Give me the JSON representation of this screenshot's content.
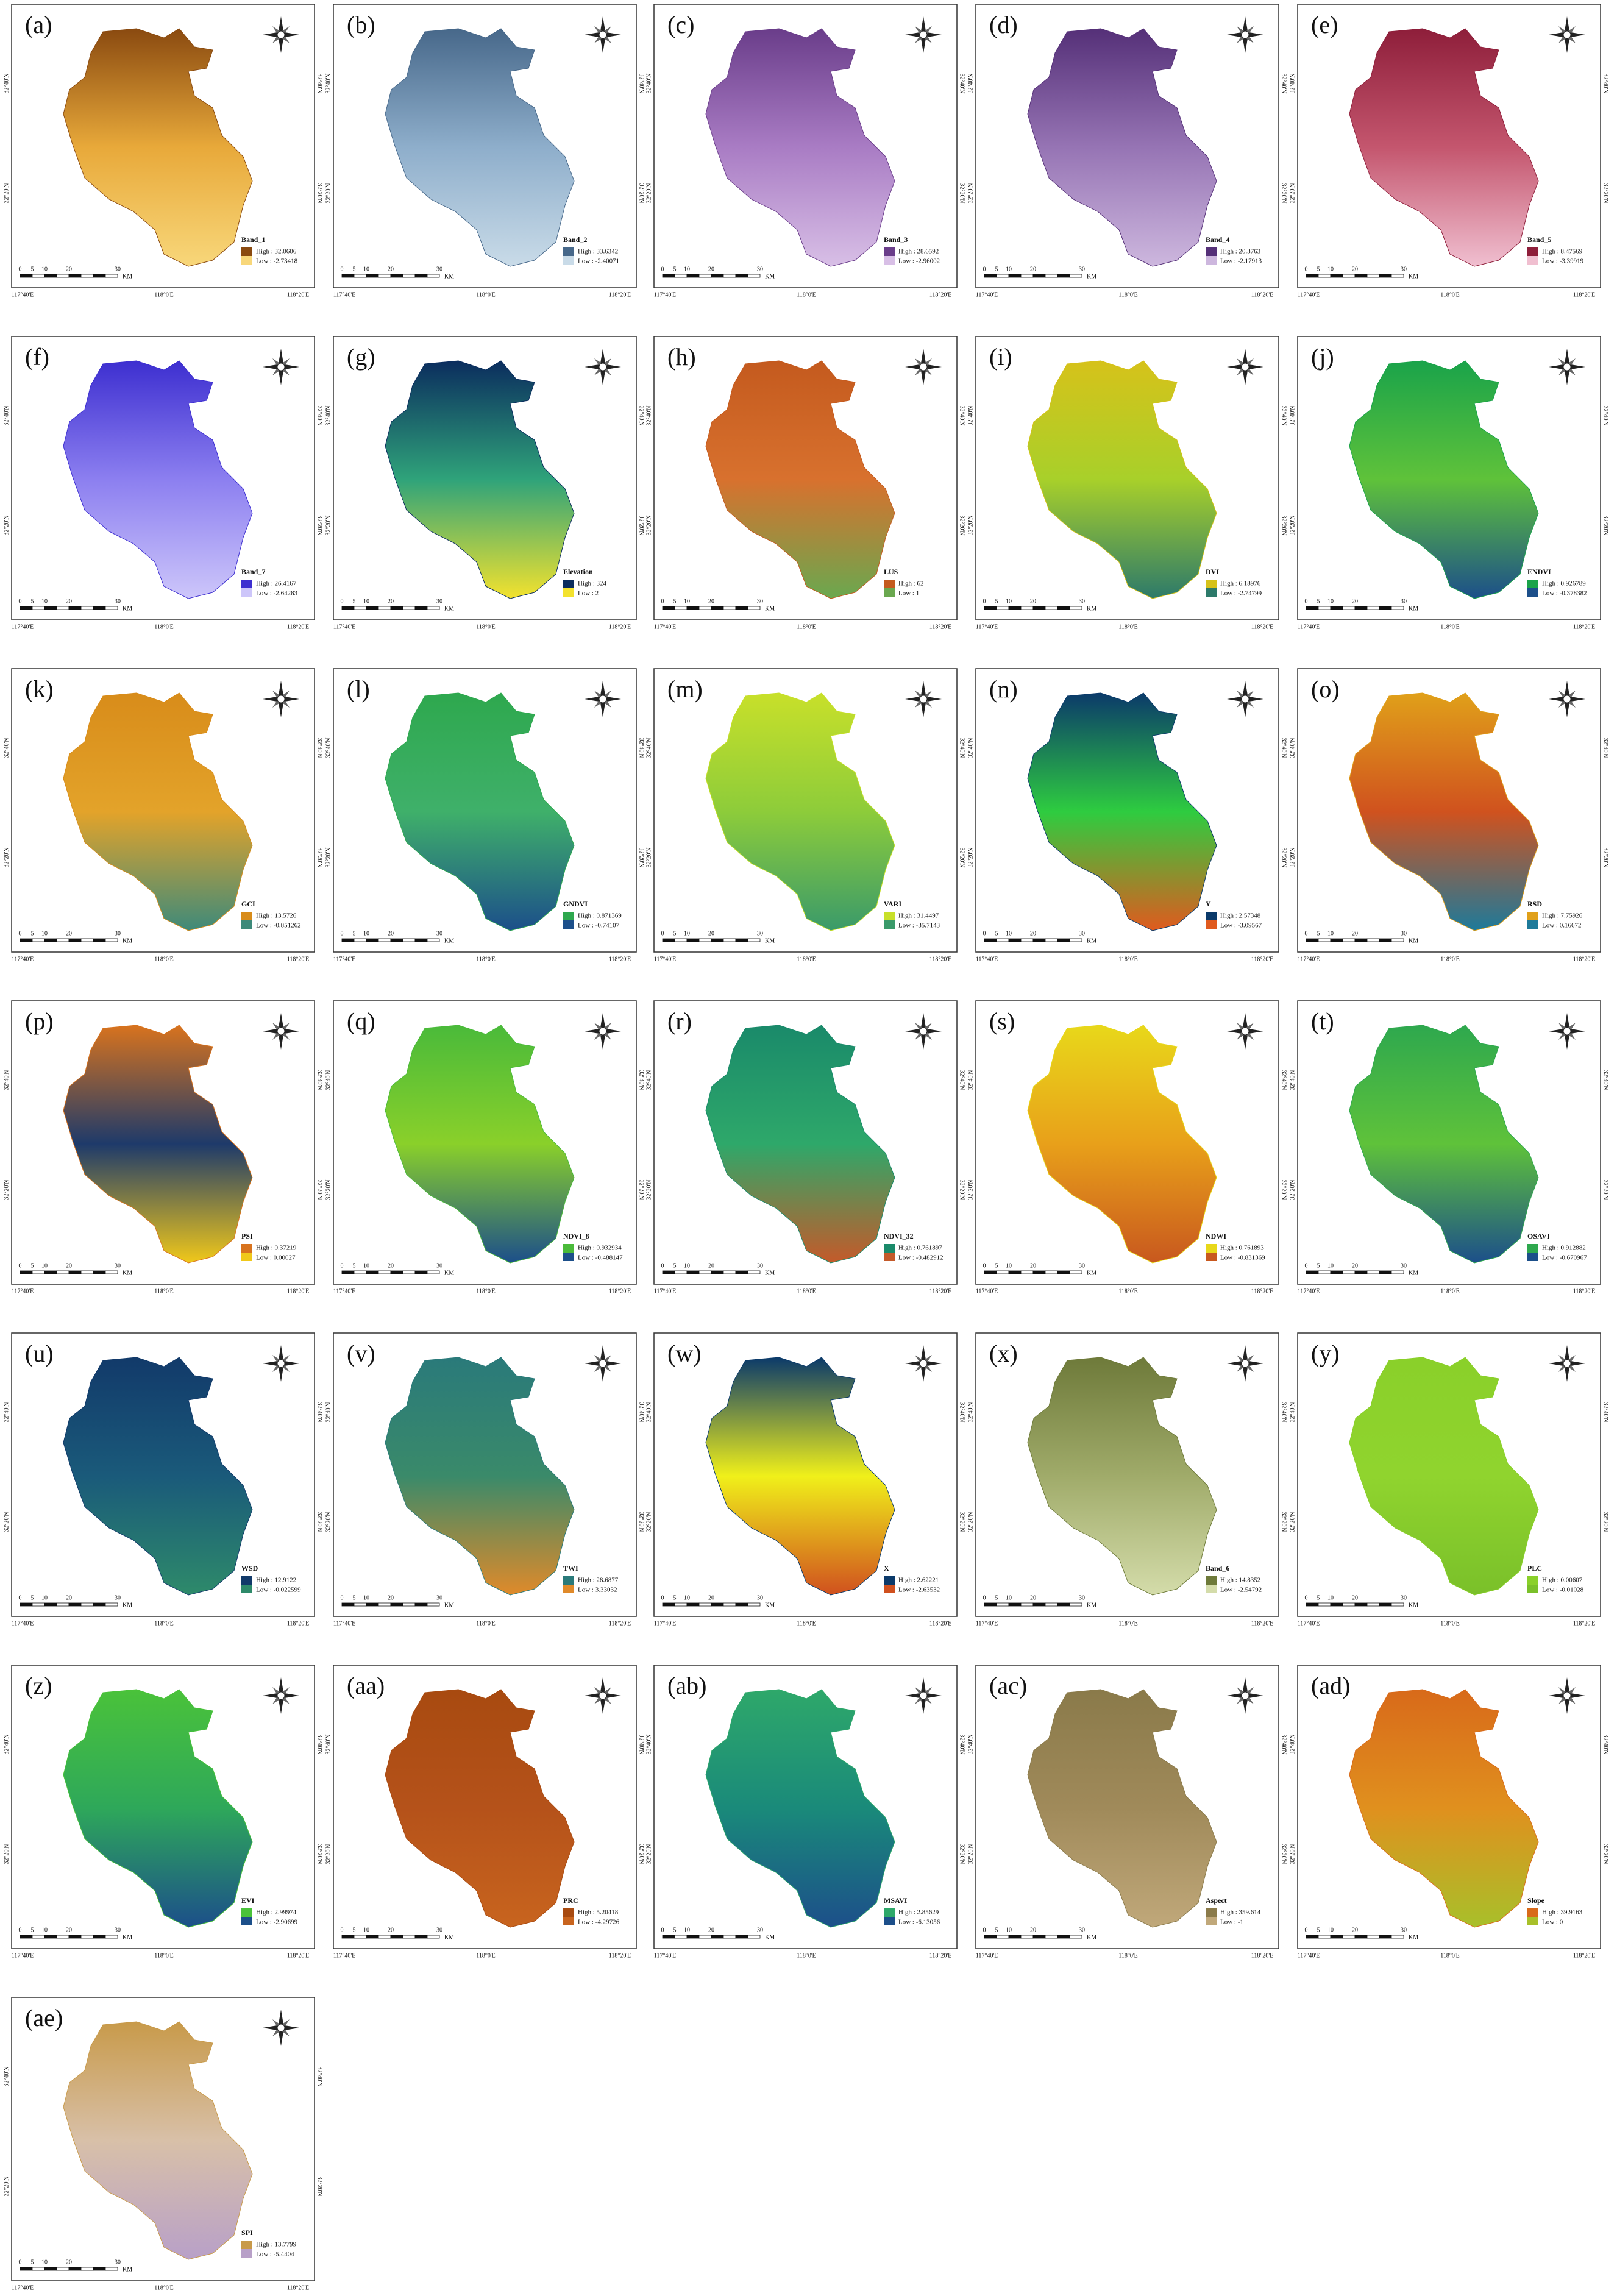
{
  "figure": {
    "scale_labels": [
      "0",
      "5",
      "10",
      "20",
      "30",
      "KM"
    ],
    "lon_labels": [
      "117°40'E",
      "118°0'E",
      "118°20'E"
    ],
    "lat_labels": [
      "32°40'N",
      "32°20'N"
    ],
    "panels": [
      {
        "label": "(a)",
        "legend_title": "Band_1",
        "high": "High : 32.0606",
        "low": "Low : -2.73418",
        "colors": [
          "#8a4a10",
          "#e8a93a",
          "#f8d77a"
        ]
      },
      {
        "label": "(b)",
        "legend_title": "Band_2",
        "high": "High : 33.6342",
        "low": "Low : -2.40071",
        "colors": [
          "#47688a",
          "#8eaecb",
          "#c9dbe8"
        ]
      },
      {
        "label": "(c)",
        "legend_title": "Band_3",
        "high": "High : 28.6592",
        "low": "Low : -2.96002",
        "colors": [
          "#6a3d8a",
          "#a97cc4",
          "#d8bfe6"
        ]
      },
      {
        "label": "(d)",
        "legend_title": "Band_4",
        "high": "High : 20.3763",
        "low": "Low : -2.17913",
        "colors": [
          "#553078",
          "#9674b4",
          "#cdb7de"
        ]
      },
      {
        "label": "(e)",
        "legend_title": "Band_5",
        "high": "High : 8.47569",
        "low": "Low : -3.39919",
        "colors": [
          "#8e1e3a",
          "#c4566e",
          "#f0bfd0"
        ]
      },
      {
        "label": "(f)",
        "legend_title": "Band_7",
        "high": "High : 26.4167",
        "low": "Low : -2.64283",
        "colors": [
          "#3d2fd0",
          "#8c7ff0",
          "#cdc6fa"
        ]
      },
      {
        "label": "(g)",
        "legend_title": "Elevation",
        "high": "High : 324",
        "low": "Low : 2",
        "colors": [
          "#0b2d5e",
          "#2fa37a",
          "#f3e22e"
        ]
      },
      {
        "label": "(h)",
        "legend_title": "LUS",
        "high": "High : 62",
        "low": "Low : 1",
        "colors": [
          "#c45a1e",
          "#d8712e",
          "#6aa84f"
        ]
      },
      {
        "label": "(i)",
        "legend_title": "DVI",
        "high": "High : 6.18976",
        "low": "Low : -2.74799",
        "colors": [
          "#d6c21a",
          "#a8d02a",
          "#2d7a6a"
        ]
      },
      {
        "label": "(j)",
        "legend_title": "ENDVI",
        "high": "High : 0.926789",
        "low": "Low : -0.378382",
        "colors": [
          "#1aa34a",
          "#5fc23a",
          "#1c4f8a"
        ]
      },
      {
        "label": "(k)",
        "legend_title": "GCI",
        "high": "High : 13.5726",
        "low": "Low : -0.851262",
        "colors": [
          "#d88c1a",
          "#e3a32a",
          "#3e8a7a"
        ]
      },
      {
        "label": "(l)",
        "legend_title": "GNDVI",
        "high": "High : 0.871369",
        "low": "Low : -0.74107",
        "colors": [
          "#2ea84e",
          "#3fb06a",
          "#1c4f8a"
        ]
      },
      {
        "label": "(m)",
        "legend_title": "VARI",
        "high": "High : 31.4497",
        "low": "Low : -35.7143",
        "colors": [
          "#c8e02a",
          "#8dcc3a",
          "#3a9a6a"
        ]
      },
      {
        "label": "(n)",
        "legend_title": "Y",
        "high": "High : 2.57348",
        "low": "Low : -3.09567",
        "colors": [
          "#0b3a6a",
          "#2ecc40",
          "#e05a1e"
        ]
      },
      {
        "label": "(o)",
        "legend_title": "RSD",
        "high": "High : 7.75926",
        "low": "Low : 0.16672",
        "colors": [
          "#e0a01a",
          "#d0521e",
          "#1e7a9a"
        ]
      },
      {
        "label": "(p)",
        "legend_title": "PSI",
        "high": "High : 0.37219",
        "low": "Low : 0.00027",
        "colors": [
          "#d8731e",
          "#1e3a6a",
          "#f0c81a"
        ]
      },
      {
        "label": "(q)",
        "legend_title": "NDVI_8",
        "high": "High : 0.932934",
        "low": "Low : -0.488147",
        "colors": [
          "#4aba3a",
          "#8ad02a",
          "#1c4f8a"
        ]
      },
      {
        "label": "(r)",
        "legend_title": "NDVI_32",
        "high": "High : 0.761897",
        "low": "Low : -0.482912",
        "colors": [
          "#1a8a6a",
          "#2ea86a",
          "#c45a2a"
        ]
      },
      {
        "label": "(s)",
        "legend_title": "NDWI",
        "high": "High : 0.761893",
        "low": "Low : -0.831369",
        "colors": [
          "#e8d81a",
          "#e8a01a",
          "#c8581e"
        ]
      },
      {
        "label": "(t)",
        "legend_title": "OSAVI",
        "high": "High : 0.912882",
        "low": "Low : -0.670967",
        "colors": [
          "#2ea84e",
          "#5fc23a",
          "#1c4f8a"
        ]
      },
      {
        "label": "(u)",
        "legend_title": "WSD",
        "high": "High : 12.9122",
        "low": "Low : -0.022599",
        "colors": [
          "#123a6a",
          "#1a5a7a",
          "#2e8a6a"
        ]
      },
      {
        "label": "(v)",
        "legend_title": "TWI",
        "high": "High : 28.6877",
        "low": "Low : 3.33032",
        "colors": [
          "#2a7a7a",
          "#3a8a6a",
          "#e08a2a"
        ]
      },
      {
        "label": "(w)",
        "legend_title": "X",
        "high": "High : 2.62221",
        "low": "Low : -2.63532",
        "colors": [
          "#0b3a6a",
          "#f0f01a",
          "#d0501e"
        ]
      },
      {
        "label": "(x)",
        "legend_title": "Band_6",
        "high": "High : 14.8352",
        "low": "Low : -2.54792",
        "colors": [
          "#6e7a3a",
          "#a0ab6a",
          "#d4dcaa"
        ]
      },
      {
        "label": "(y)",
        "legend_title": "PLC",
        "high": "High : 0.00607",
        "low": "Low : -0.01028",
        "colors": [
          "#8ad02a",
          "#90d42e",
          "#7ac02a"
        ]
      },
      {
        "label": "(z)",
        "legend_title": "EVI",
        "high": "High : 2.99974",
        "low": "Low : -2.90699",
        "colors": [
          "#4ac23a",
          "#2ea85a",
          "#1c4f8a"
        ]
      },
      {
        "label": "(aa)",
        "legend_title": "PRC",
        "high": "High : 5.20418",
        "low": "Low : -4.29726",
        "colors": [
          "#a84a10",
          "#b5521a",
          "#c8641e"
        ]
      },
      {
        "label": "(ab)",
        "legend_title": "MSAVI",
        "high": "High : 2.85629",
        "low": "Low : -6.13056",
        "colors": [
          "#2ea86a",
          "#1a8a7a",
          "#1c4f8a"
        ]
      },
      {
        "label": "(ac)",
        "legend_title": "Aspect",
        "high": "High : 359.614",
        "low": "Low : -1",
        "colors": [
          "#8a7a4a",
          "#a08a5a",
          "#c0a87a"
        ]
      },
      {
        "label": "(ad)",
        "legend_title": "Slope",
        "high": "High : 39.9163",
        "low": "Low : 0",
        "colors": [
          "#d86a1a",
          "#e0901e",
          "#a8c02a"
        ]
      },
      {
        "label": "(ae)",
        "legend_title": "SPI",
        "high": "High : 13.7799",
        "low": "Low : -5.4404",
        "colors": [
          "#c89a4a",
          "#d8c0a8",
          "#b8a0c8"
        ]
      }
    ]
  }
}
